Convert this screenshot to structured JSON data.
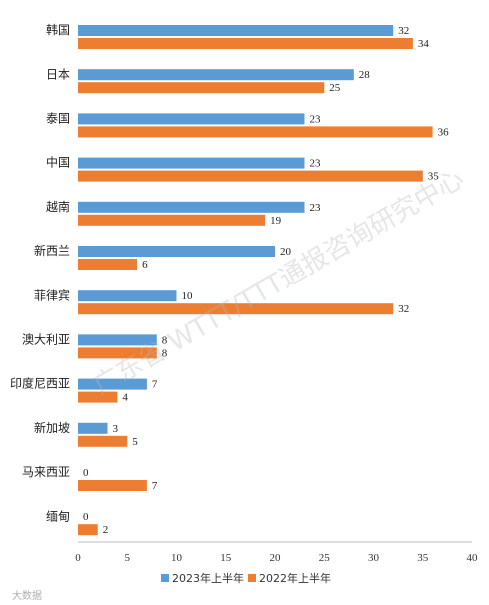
{
  "chart_data": {
    "type": "bar",
    "orientation": "horizontal",
    "categories": [
      "韩国",
      "日本",
      "泰国",
      "中国",
      "越南",
      "新西兰",
      "菲律宾",
      "澳大利亚",
      "印度尼西亚",
      "新加坡",
      "马来西亚",
      "缅甸"
    ],
    "series": [
      {
        "name": "2023年上半年",
        "color": "#5b9bd5",
        "values": [
          32,
          28,
          23,
          23,
          23,
          20,
          10,
          8,
          7,
          3,
          0,
          0
        ]
      },
      {
        "name": "2022年上半年",
        "color": "#ed7d31",
        "values": [
          34,
          25,
          36,
          35,
          19,
          6,
          32,
          8,
          4,
          5,
          7,
          2
        ]
      }
    ],
    "xlim": [
      0,
      40
    ],
    "xticks": [
      "0",
      "5",
      "10",
      "15",
      "20",
      "25",
      "30",
      "35",
      "40"
    ],
    "grid": false,
    "legend_position": "bottom"
  },
  "watermark": "广东省 WTTT/TTT通报咨询研究中心",
  "corner_watermark": "大数据"
}
